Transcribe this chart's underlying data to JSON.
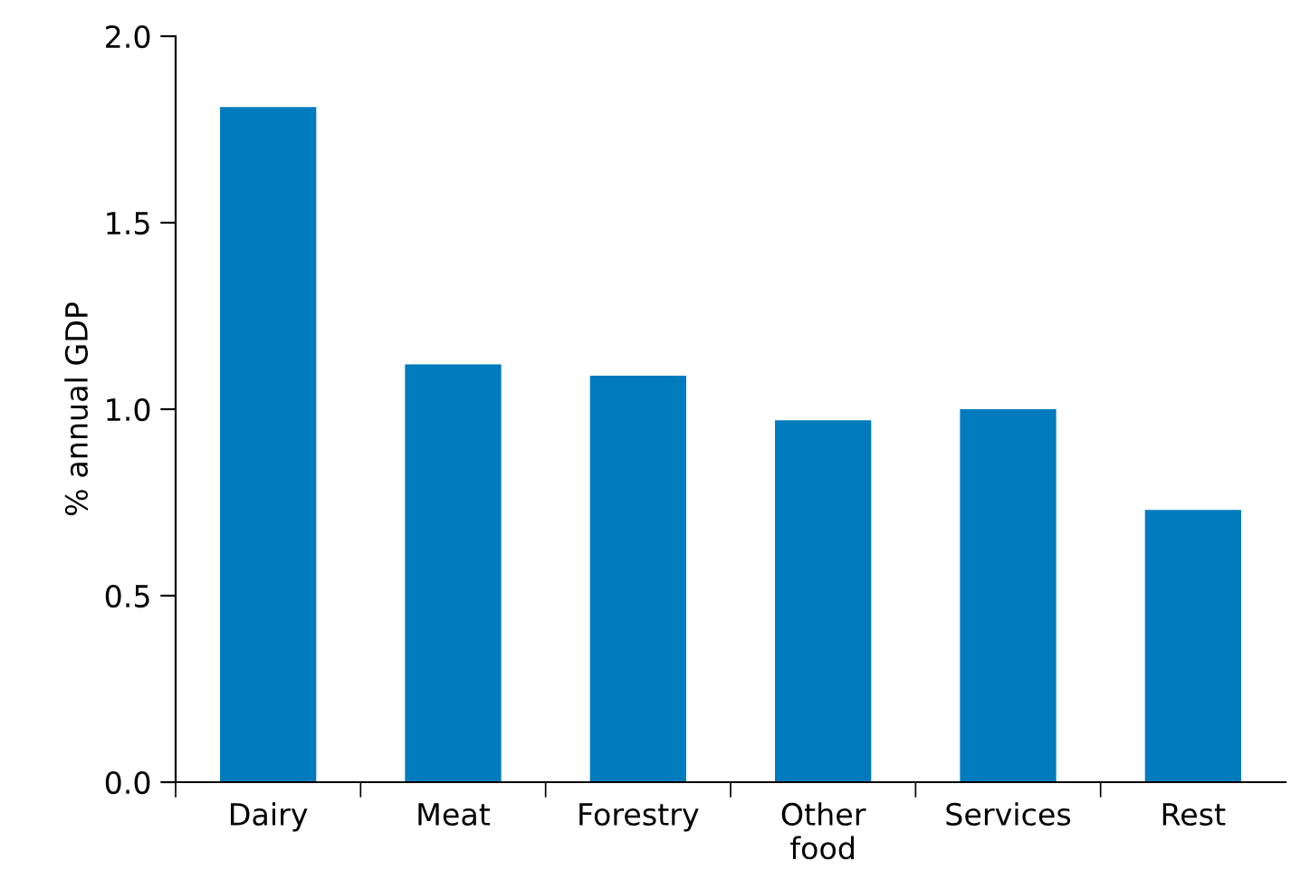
{
  "chart_data": {
    "type": "bar",
    "ylabel": "% annual GDP",
    "categories": [
      "Dairy",
      "Meat",
      "Forestry",
      "Other\nfood",
      "Services",
      "Rest"
    ],
    "values": [
      1.81,
      1.12,
      1.09,
      0.97,
      1.0,
      0.73
    ],
    "color": "#007bbd",
    "ylim": [
      0,
      2
    ],
    "yticks": [
      {
        "value": 0,
        "label": "0.0"
      },
      {
        "value": 0.5,
        "label": "0.5"
      },
      {
        "value": 1,
        "label": "1.0"
      },
      {
        "value": 1.5,
        "label": "1.5"
      },
      {
        "value": 2,
        "label": "2.0"
      }
    ],
    "grid": false
  }
}
